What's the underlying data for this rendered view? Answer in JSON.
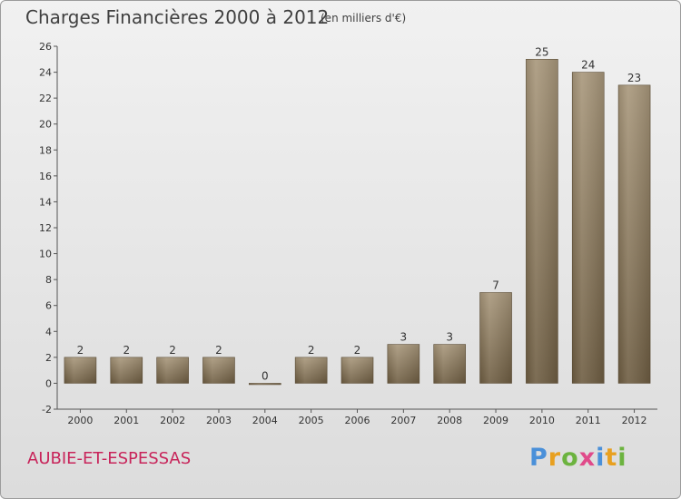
{
  "chart_data": {
    "type": "bar",
    "title": "Charges Financières 2000 à 2012",
    "subtitle": "(en milliers d'€)",
    "categories": [
      "2000",
      "2001",
      "2002",
      "2003",
      "2004",
      "2005",
      "2006",
      "2007",
      "2008",
      "2009",
      "2010",
      "2011",
      "2012"
    ],
    "values": [
      2,
      2,
      2,
      2,
      0,
      2,
      2,
      3,
      3,
      7,
      25,
      24,
      23
    ],
    "ylim": [
      -2,
      26
    ],
    "yticks": [
      -2,
      0,
      2,
      4,
      6,
      8,
      10,
      12,
      14,
      16,
      18,
      20,
      22,
      24,
      26
    ],
    "grid": false,
    "bar_color": "#8c7a5e"
  },
  "footer": {
    "commune": "AUBIE-ET-ESPESSAS",
    "logo_text": "Proxiti",
    "logo_colors": [
      "#4a90d9",
      "#e8a020",
      "#6cb33f",
      "#e04a8a",
      "#4a90d9",
      "#e8a020",
      "#6cb33f"
    ]
  }
}
